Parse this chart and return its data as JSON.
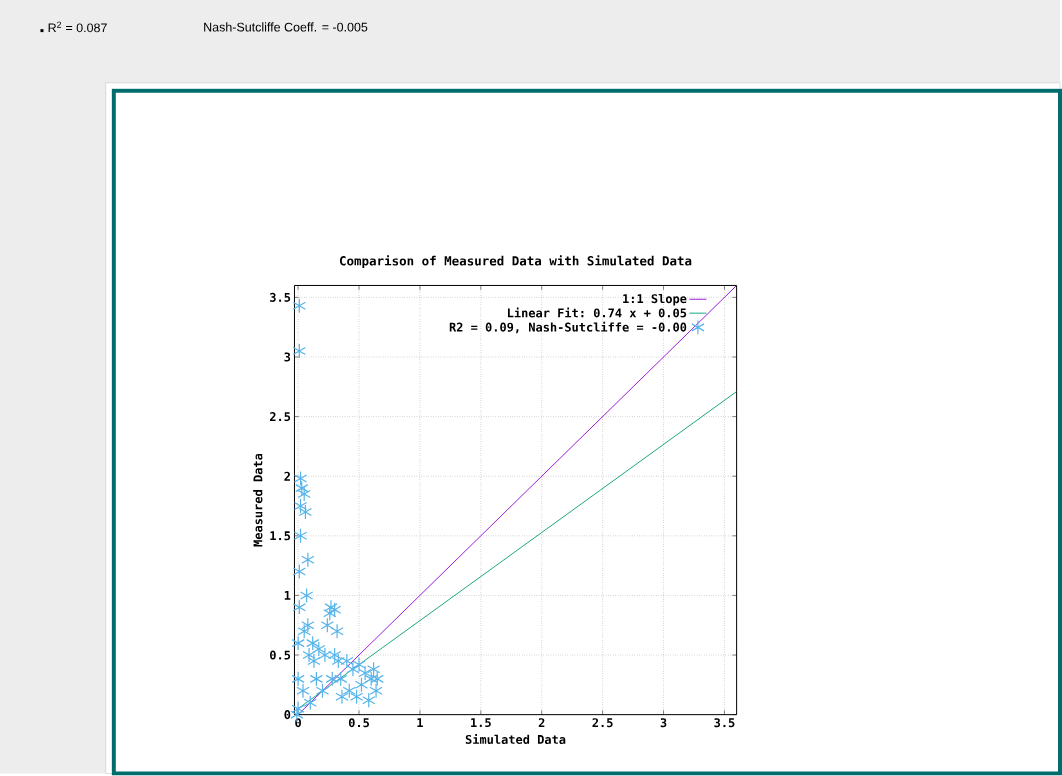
{
  "chart_data": {
    "type": "scatter",
    "title": "Comparison of Measured Data with Simulated Data",
    "xlabel": "Simulated Data",
    "ylabel": "Measured Data",
    "annotations": [
      "R$^{2}$ = 0.087",
      "Nash-Sutcliffe Coeff. = -0.005"
    ],
    "xlim": [
      -0.03,
      3.6
    ],
    "ylim": [
      0,
      3.6
    ],
    "xticks": [
      0,
      0.5,
      1,
      1.5,
      2,
      2.5,
      3,
      3.5
    ],
    "yticks": [
      0,
      0.5,
      1,
      1.5,
      2,
      2.5,
      3,
      3.5
    ],
    "grid": true,
    "legend": "top right",
    "series": [
      {
        "name": "1:1 Slope",
        "type": "line",
        "color": "#9400d3",
        "x": [
          0,
          3.6
        ],
        "values": [
          0,
          3.6
        ]
      },
      {
        "name": "Linear Fit: 0.74 x + 0.05",
        "type": "line",
        "color": "#009e73",
        "x": [
          0,
          3.6
        ],
        "values": [
          0.05,
          2.71
        ]
      },
      {
        "name": "R2 = 0.09,   Nash-Sutcliffe = -0.00",
        "marker": "cross",
        "color": "#56b4e9",
        "x": [
          -0.01,
          0,
          0,
          0,
          0.01,
          0.01,
          0.02,
          0.02,
          0.03,
          0.02,
          0.01,
          0.01,
          0.05,
          0.06,
          0.08,
          0.07,
          0.05,
          0.09,
          0.1,
          0.04,
          0.08,
          0.12,
          0.13,
          0.15,
          0.17,
          0.2,
          0.22,
          0.24,
          0.26,
          0.27,
          0.3,
          0.32,
          0.3,
          0.28,
          0.33,
          0.35,
          0.36,
          0.4,
          0.42,
          0.45,
          0.48,
          0.5,
          0.52,
          0.55,
          0.58,
          0.6,
          0.62,
          0.64,
          0.65
        ],
        "values": [
          0,
          0.05,
          0.3,
          0.6,
          0.9,
          1.2,
          1.5,
          1.75,
          1.9,
          1.98,
          3.05,
          3.43,
          1.85,
          1.7,
          1.3,
          1.0,
          0.7,
          0.5,
          0.1,
          0.2,
          0.75,
          0.6,
          0.45,
          0.3,
          0.55,
          0.2,
          0.5,
          0.75,
          0.85,
          0.9,
          0.88,
          0.7,
          0.5,
          0.3,
          0.45,
          0.3,
          0.15,
          0.45,
          0.2,
          0.38,
          0.15,
          0.42,
          0.25,
          0.35,
          0.12,
          0.3,
          0.38,
          0.2,
          0.3
        ]
      }
    ]
  }
}
